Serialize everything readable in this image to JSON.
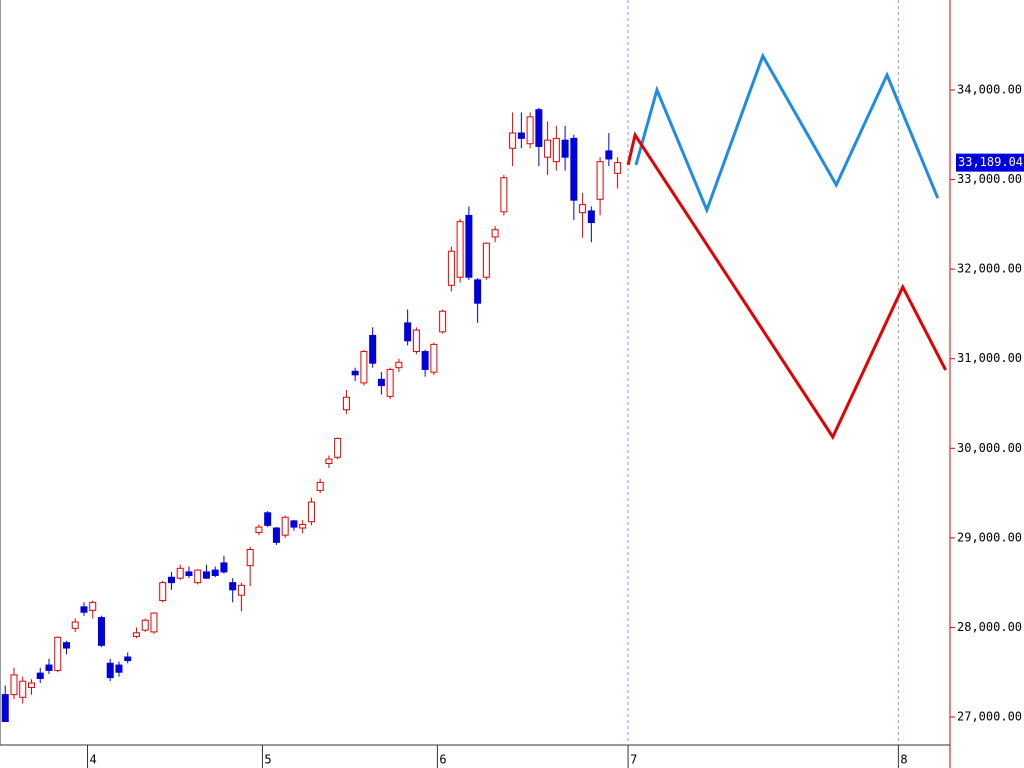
{
  "chart_data": {
    "type": "candlestick",
    "categories": [
      null,
      null,
      null,
      null,
      null,
      null,
      null,
      null,
      null,
      null,
      null,
      null,
      null,
      null,
      null,
      null,
      null,
      null,
      null,
      null,
      null,
      null,
      null,
      null,
      null,
      null,
      null,
      null,
      null,
      null,
      null,
      null,
      null,
      null,
      null,
      null,
      null,
      null,
      null,
      null,
      null,
      null,
      null,
      null,
      null,
      null,
      null,
      null,
      null,
      null,
      null,
      null,
      null,
      null,
      null,
      null,
      null,
      null,
      null,
      null,
      null,
      null,
      null,
      null,
      null,
      null,
      null,
      null,
      null,
      null,
      null
    ],
    "open": [
      27250,
      27250,
      27220,
      27330,
      27490,
      27580,
      27520,
      27830,
      27990,
      28230,
      28190,
      28110,
      27600,
      27580,
      27670,
      27900,
      27970,
      27950,
      28300,
      28560,
      28550,
      28620,
      28500,
      28620,
      28640,
      28720,
      28500,
      28360,
      28690,
      29060,
      29280,
      29110,
      29030,
      29190,
      29110,
      29180,
      29530,
      29830,
      29900,
      30430,
      30860,
      30730,
      31260,
      30770,
      30580,
      30900,
      31400,
      31080,
      31080,
      30850,
      31300,
      31820,
      31910,
      32600,
      31880,
      31910,
      32360,
      32640,
      33350,
      33520,
      33400,
      33780,
      33250,
      33200,
      33440,
      33460,
      32630,
      32650,
      32780,
      33320,
      33070
    ],
    "high": [
      27350,
      27550,
      27450,
      27420,
      27550,
      27650,
      27900,
      27850,
      28100,
      28280,
      28300,
      28130,
      27650,
      27620,
      27720,
      28000,
      28100,
      28170,
      28520,
      28620,
      28700,
      28680,
      28650,
      28700,
      28680,
      28800,
      28550,
      28500,
      28900,
      29150,
      29300,
      29120,
      29250,
      29200,
      29200,
      29450,
      29660,
      29920,
      30120,
      30650,
      30900,
      31100,
      31350,
      30850,
      30900,
      31000,
      31550,
      31350,
      31100,
      31180,
      31550,
      32250,
      32560,
      32700,
      31900,
      32300,
      32480,
      33050,
      33750,
      33750,
      33750,
      33800,
      33650,
      33600,
      33600,
      33500,
      32850,
      32700,
      33250,
      33520,
      33250
    ],
    "low": [
      26950,
      27200,
      27150,
      27250,
      27380,
      27480,
      27500,
      27700,
      27950,
      28130,
      28100,
      27780,
      27400,
      27450,
      27600,
      27880,
      27950,
      27930,
      28280,
      28420,
      28530,
      28550,
      28480,
      28540,
      28560,
      28600,
      28280,
      28180,
      28460,
      29030,
      29120,
      28920,
      29000,
      29080,
      29050,
      29140,
      29500,
      29780,
      29880,
      30380,
      30750,
      30700,
      30900,
      30600,
      30550,
      30850,
      31150,
      31050,
      30800,
      30820,
      31280,
      31750,
      31850,
      31880,
      31400,
      31880,
      32300,
      32600,
      33150,
      33350,
      33350,
      33150,
      33050,
      33100,
      33100,
      32550,
      32350,
      32300,
      32600,
      33150,
      32900
    ],
    "close": [
      26950,
      27470,
      27400,
      27380,
      27430,
      27520,
      27890,
      27770,
      28060,
      28170,
      28280,
      27800,
      27440,
      27500,
      27630,
      27940,
      28080,
      28160,
      28500,
      28500,
      28660,
      28580,
      28640,
      28550,
      28580,
      28620,
      28420,
      28470,
      28870,
      29120,
      29140,
      28950,
      29230,
      29120,
      29150,
      29400,
      29620,
      29880,
      30110,
      30570,
      30820,
      31080,
      30950,
      30700,
      30880,
      30960,
      31200,
      31320,
      30880,
      31160,
      31530,
      32200,
      32530,
      31910,
      31620,
      32290,
      32440,
      33020,
      33520,
      33460,
      33700,
      33370,
      33440,
      33460,
      33250,
      32770,
      32720,
      32520,
      33200,
      33230,
      33189.04
    ],
    "up_color": "#e60000",
    "down_color": "#0000dd",
    "overlays": [
      {
        "color": "#1e8ce6",
        "x": [
          72.1,
          74.5,
          80.2,
          86.6,
          95.0,
          100.8,
          106.6
        ],
        "values": [
          33163,
          34000,
          32660,
          34380,
          32940,
          34168,
          32794
        ]
      },
      {
        "color": "#e60000",
        "x": [
          71.2,
          72.0,
          94.6,
          102.6,
          107.5
        ],
        "values": [
          33163,
          33498,
          30126,
          31801,
          30874
        ]
      }
    ],
    "price_label": {
      "value": 33189.04,
      "label": "33,189.04"
    },
    "xlim": [
      -0.6,
      108
    ],
    "xticks": [
      {
        "value": 9.4,
        "label": "4"
      },
      {
        "value": 29.4,
        "label": "5"
      },
      {
        "value": 49.4,
        "label": "6"
      },
      {
        "value": 71.2,
        "label": "7"
      },
      {
        "value": 102.1,
        "label": "8"
      }
    ],
    "vlines": [
      71.2,
      102.1
    ],
    "ylim": [
      26700,
      35000
    ],
    "yticks": [
      {
        "value": 27000,
        "label": "27,000.00"
      },
      {
        "value": 28000,
        "label": "28,000.00"
      },
      {
        "value": 29000,
        "label": "29,000.00"
      },
      {
        "value": 30000,
        "label": "30,000.00"
      },
      {
        "value": 31000,
        "label": "31,000.00"
      },
      {
        "value": 32000,
        "label": "32,000.00"
      },
      {
        "value": 33000,
        "label": "33,000.00"
      },
      {
        "value": 34000,
        "label": "34,000.00"
      }
    ]
  }
}
